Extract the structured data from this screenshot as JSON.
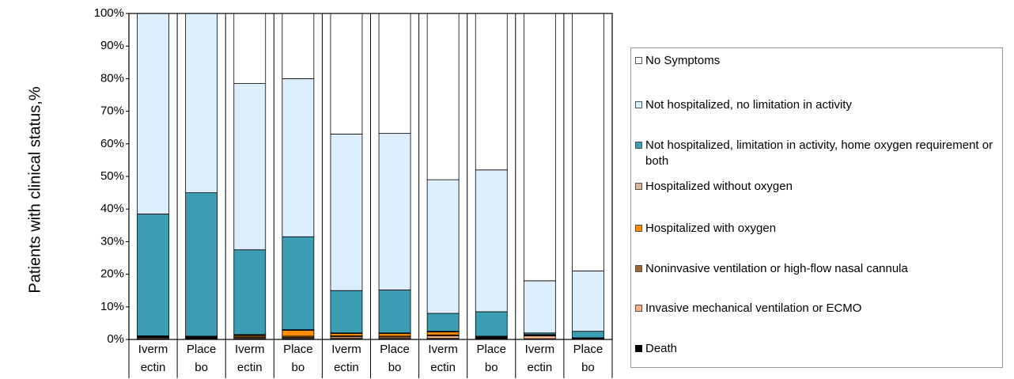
{
  "chart_data": {
    "type": "stacked_bar",
    "y_label": "Patients with clinical status,%",
    "categories": [
      "Iverm\nectin",
      "Place\nbo",
      "Iverm\nectin",
      "Place\nbo",
      "Iverm\nectin",
      "Place\nbo",
      "Iverm\nectin",
      "Place\nbo",
      "Iverm\nectin",
      "Place\nbo"
    ],
    "ylim": [
      0,
      100
    ],
    "yticks": [
      {
        "value": 0,
        "label": "0%"
      },
      {
        "value": 10,
        "label": "10%"
      },
      {
        "value": 20,
        "label": "20%"
      },
      {
        "value": 30,
        "label": "30%"
      },
      {
        "value": 40,
        "label": "40%"
      },
      {
        "value": 50,
        "label": "50%"
      },
      {
        "value": 60,
        "label": "60%"
      },
      {
        "value": 70,
        "label": "70%"
      },
      {
        "value": 80,
        "label": "80%"
      },
      {
        "value": 90,
        "label": "90%"
      },
      {
        "value": 100,
        "label": "100%"
      }
    ],
    "series": [
      {
        "name": "No Symptoms",
        "color": "#ffffff",
        "values": [
          0,
          0,
          21.5,
          20,
          37,
          36.8,
          51,
          48,
          82,
          79
        ]
      },
      {
        "name": "Not hospitalized, no limitation in activity",
        "color": "#ddeeff",
        "values": [
          61.5,
          55,
          51,
          48.5,
          48,
          48,
          41,
          43.5,
          16,
          18.5
        ]
      },
      {
        "name": "Not hospitalized, limitation in activity, home oxygen requirement or both",
        "color": "#3d9db3",
        "values": [
          37.4,
          44,
          26,
          28.5,
          13,
          13.2,
          5.5,
          7.5,
          0.5,
          2
        ]
      },
      {
        "name": "Hospitalized without  oxygen",
        "color": "#d6b8a4",
        "values": [
          0.2,
          0.2,
          0.2,
          0.2,
          0.2,
          0.2,
          0.2,
          0.1,
          0.1,
          0.1
        ]
      },
      {
        "name": "Hospitalized with oxygen",
        "color": "#ff8c00",
        "values": [
          0.2,
          0.2,
          0.3,
          1.8,
          0.7,
          0.8,
          0.9,
          0.2,
          0.1,
          0.1
        ]
      },
      {
        "name": "Noninvasive ventilation or high-flow nasal cannula",
        "color": "#9c6a30",
        "values": [
          0.2,
          0.2,
          0.4,
          0.4,
          0.3,
          0.3,
          0.3,
          0.2,
          0.2,
          0.1
        ]
      },
      {
        "name": "Invasive mechanical ventilation or ECMO",
        "color": "#f4b183",
        "values": [
          0.3,
          0.2,
          0.3,
          0.3,
          0.5,
          0.4,
          0.8,
          0.2,
          0.9,
          0.1
        ]
      },
      {
        "name": "Death",
        "color": "#000000",
        "values": [
          0.2,
          0.2,
          0.3,
          0.3,
          0.3,
          0.3,
          0.3,
          0.3,
          0.2,
          0.1
        ]
      }
    ]
  }
}
